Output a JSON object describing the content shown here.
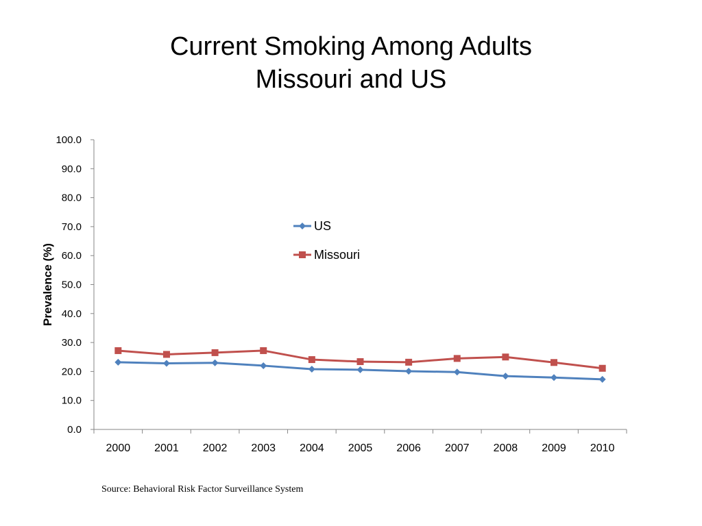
{
  "slide": {
    "title_line1": "Current Smoking Among Adults",
    "title_line2": "Missouri and US",
    "source": "Source: Behavioral Risk Factor Surveillance System"
  },
  "chart_data": {
    "type": "line",
    "title": "",
    "xlabel": "",
    "ylabel": "Prevalence (%)",
    "ylim": [
      0,
      100
    ],
    "yticks": [
      "0.0",
      "10.0",
      "20.0",
      "30.0",
      "40.0",
      "50.0",
      "60.0",
      "70.0",
      "80.0",
      "90.0",
      "100.0"
    ],
    "categories": [
      "2000",
      "2001",
      "2002",
      "2003",
      "2004",
      "2005",
      "2006",
      "2007",
      "2008",
      "2009",
      "2010"
    ],
    "grid": false,
    "legend_position": "center-right",
    "series": [
      {
        "name": "US",
        "color": "#4F81BD",
        "marker": "diamond",
        "values": [
          23.2,
          22.8,
          23.0,
          22.0,
          20.8,
          20.6,
          20.1,
          19.8,
          18.4,
          17.9,
          17.3
        ]
      },
      {
        "name": "Missouri",
        "color": "#C0504D",
        "marker": "square",
        "values": [
          27.2,
          25.9,
          26.5,
          27.2,
          24.1,
          23.4,
          23.2,
          24.5,
          25.0,
          23.1,
          21.1
        ]
      }
    ]
  }
}
